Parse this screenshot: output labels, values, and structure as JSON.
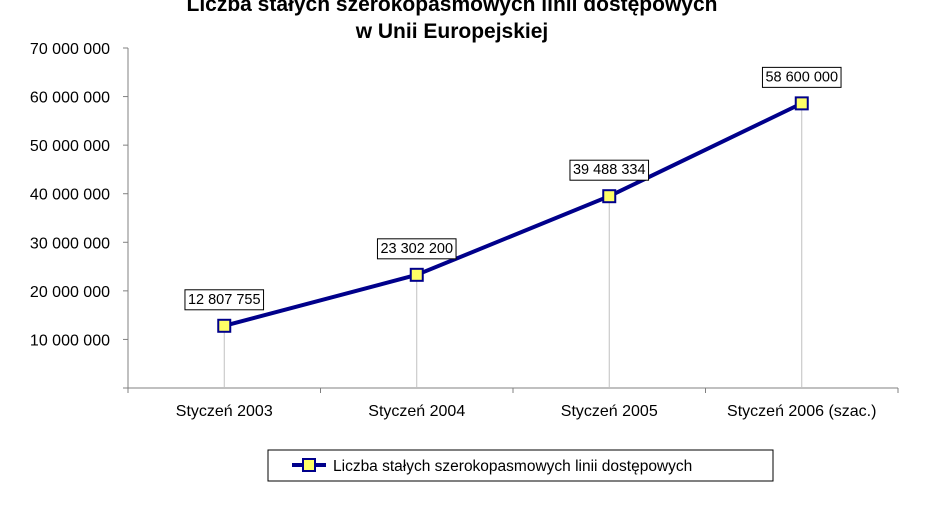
{
  "chart_data": {
    "type": "line",
    "title": "Liczba stałych szerokopasmowych linii dostępowych",
    "subtitle": "w Unii Europejskiej",
    "categories": [
      "Styczeń 2003",
      "Styczeń 2004",
      "Styczeń 2005",
      "Styczeń 2006 (szac.)"
    ],
    "series": [
      {
        "name": "Liczba stałych szerokopasmowych linii dostępowych",
        "values": [
          12807755,
          23302200,
          39488334,
          58600000
        ],
        "data_labels": [
          "12 807 755",
          "23 302 200",
          "39 488 334",
          "58 600 000"
        ]
      }
    ],
    "y_ticks": [
      "70 000 000",
      "60 000 000",
      "50 000 000",
      "40 000 000",
      "30 000 000",
      "20 000 000",
      "10 000 000"
    ],
    "ylim": [
      0,
      70000000
    ],
    "grid": false,
    "drop_lines": true,
    "legend_position": "bottom",
    "colors": {
      "line": "#00008B",
      "marker_fill": "#FFFF66",
      "axis": "#808080",
      "drop_line": "#C0C0C0"
    }
  }
}
